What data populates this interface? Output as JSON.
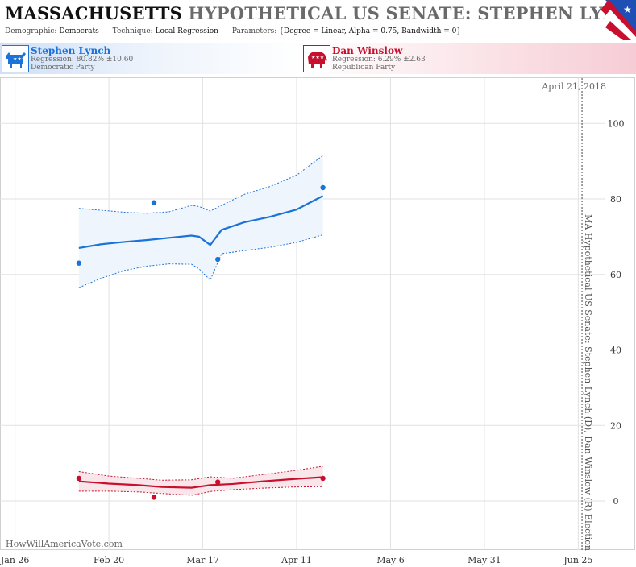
{
  "header": {
    "state": "MASSACHUSETTS",
    "title_rest": "HYPOTHETICAL US SENATE: STEPHEN LYNCH",
    "demographic_label": "Demographic:",
    "demographic_value": "Democrats",
    "technique_label": "Technique:",
    "technique_value": "Local Regression",
    "parameters_label": "Parameters:",
    "parameters_value": "{Degree = Linear, Alpha = 0.75, Bandwidth = 0}"
  },
  "candidates": [
    {
      "name": "Stephen Lynch",
      "regression": "Regression: 80.82% ±10.60",
      "party": "Democratic Party",
      "color": "#1a73d9"
    },
    {
      "name": "Dan Winslow",
      "regression": "Regression: 6.29% ±2.63",
      "party": "Republican Party",
      "color": "#c8102e"
    }
  ],
  "watermark": "HowWillAmericaVote.com",
  "chart_data": {
    "type": "line",
    "x_tick_labels": [
      "Jan 26",
      "Feb 20",
      "Mar 17",
      "Apr 11",
      "May 6",
      "May 31",
      "Jun 25"
    ],
    "x_ticks": [
      "2013-01-26",
      "2013-02-20",
      "2013-03-17",
      "2013-04-11",
      "2013-05-06",
      "2013-05-31",
      "2013-06-25"
    ],
    "xlim": [
      "2013-01-22",
      "2013-07-02"
    ],
    "y_ticks": [
      0,
      20,
      40,
      60,
      80,
      100
    ],
    "ylim": [
      -13,
      112
    ],
    "y_axis_side": "right",
    "grid": true,
    "event": {
      "date": "2013-06-26",
      "label": "MA Hypothetical US Senate: Stephen Lynch (D), Dan Winslow (R) Election"
    },
    "date_label": "April 21, 2018",
    "series": [
      {
        "name": "Stephen Lynch",
        "color": "#1a73d9",
        "band_fill": "#eef5fd",
        "points": [
          {
            "x": "2013-02-12",
            "y": 63
          },
          {
            "x": "2013-03-04",
            "y": 79
          },
          {
            "x": "2013-03-21",
            "y": 64
          },
          {
            "x": "2013-04-18",
            "y": 83
          }
        ],
        "trend": [
          {
            "x": "2013-02-12",
            "y": 67,
            "lo": 56.5,
            "hi": 77.5
          },
          {
            "x": "2013-02-18",
            "y": 68,
            "lo": 59,
            "hi": 77
          },
          {
            "x": "2013-02-24",
            "y": 68.6,
            "lo": 61,
            "hi": 76.5
          },
          {
            "x": "2013-03-02",
            "y": 69.1,
            "lo": 62.2,
            "hi": 76.2
          },
          {
            "x": "2013-03-08",
            "y": 69.7,
            "lo": 62.8,
            "hi": 76.6
          },
          {
            "x": "2013-03-14",
            "y": 70.3,
            "lo": 62.7,
            "hi": 78.3
          },
          {
            "x": "2013-03-16",
            "y": 70,
            "lo": 61.5,
            "hi": 78
          },
          {
            "x": "2013-03-19",
            "y": 67.8,
            "lo": 58.5,
            "hi": 76.8
          },
          {
            "x": "2013-03-22",
            "y": 71.8,
            "lo": 65.5,
            "hi": 78.3
          },
          {
            "x": "2013-03-28",
            "y": 73.8,
            "lo": 66.3,
            "hi": 81.2
          },
          {
            "x": "2013-04-04",
            "y": 75.3,
            "lo": 67.2,
            "hi": 83.3
          },
          {
            "x": "2013-04-11",
            "y": 77.2,
            "lo": 68.5,
            "hi": 86.3
          },
          {
            "x": "2013-04-18",
            "y": 80.8,
            "lo": 70.5,
            "hi": 91.5
          }
        ]
      },
      {
        "name": "Dan Winslow",
        "color": "#c8102e",
        "band_fill": "#f8e6ea",
        "points": [
          {
            "x": "2013-02-12",
            "y": 6
          },
          {
            "x": "2013-03-04",
            "y": 1
          },
          {
            "x": "2013-03-21",
            "y": 5
          },
          {
            "x": "2013-04-18",
            "y": 6
          }
        ],
        "trend": [
          {
            "x": "2013-02-12",
            "y": 5.2,
            "lo": 2.6,
            "hi": 7.8
          },
          {
            "x": "2013-02-20",
            "y": 4.6,
            "lo": 2.6,
            "hi": 6.6
          },
          {
            "x": "2013-02-28",
            "y": 4.2,
            "lo": 2.4,
            "hi": 6.0
          },
          {
            "x": "2013-03-06",
            "y": 3.7,
            "lo": 2.0,
            "hi": 5.5
          },
          {
            "x": "2013-03-14",
            "y": 3.5,
            "lo": 1.5,
            "hi": 5.6
          },
          {
            "x": "2013-03-19",
            "y": 4.2,
            "lo": 2.5,
            "hi": 6.4
          },
          {
            "x": "2013-03-25",
            "y": 4.5,
            "lo": 3.0,
            "hi": 6.0
          },
          {
            "x": "2013-04-02",
            "y": 5.2,
            "lo": 3.4,
            "hi": 7.0
          },
          {
            "x": "2013-04-10",
            "y": 5.8,
            "lo": 3.7,
            "hi": 8.0
          },
          {
            "x": "2013-04-18",
            "y": 6.3,
            "lo": 3.8,
            "hi": 9.2
          }
        ]
      }
    ]
  }
}
